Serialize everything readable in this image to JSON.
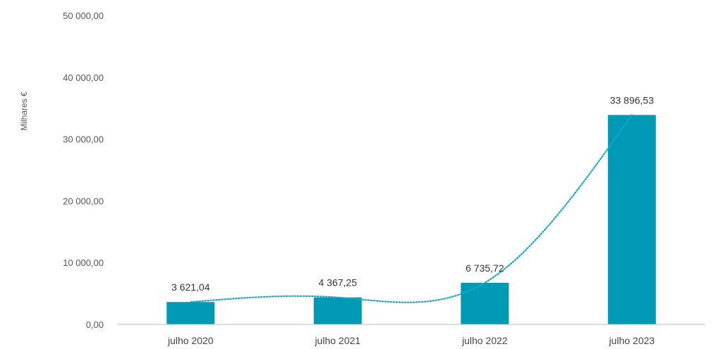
{
  "chart_data": {
    "type": "bar",
    "title": "",
    "xlabel": "",
    "ylabel": "Milhares €",
    "categories": [
      "julho 2020",
      "julho 2021",
      "julho 2022",
      "julho 2023"
    ],
    "values": [
      3621.04,
      4367.25,
      6735.72,
      33896.53
    ],
    "value_labels": [
      "3 621,04",
      "4 367,25",
      "6 735,72",
      "33 896,53"
    ],
    "ylim": [
      0,
      50000
    ],
    "y_ticks": [
      0,
      10000,
      20000,
      30000,
      40000,
      50000
    ],
    "y_tick_labels": [
      "0,00",
      "10 000,00",
      "20 000,00",
      "30 000,00",
      "40 000,00",
      "50 000,00"
    ],
    "grid": false,
    "legend": "none",
    "trendline": {
      "style": "dotted",
      "kind": "smooth"
    },
    "colors": {
      "bar": "#0099B6",
      "trendline": "#1AA6C6",
      "axis": "#BFBFBF"
    }
  }
}
